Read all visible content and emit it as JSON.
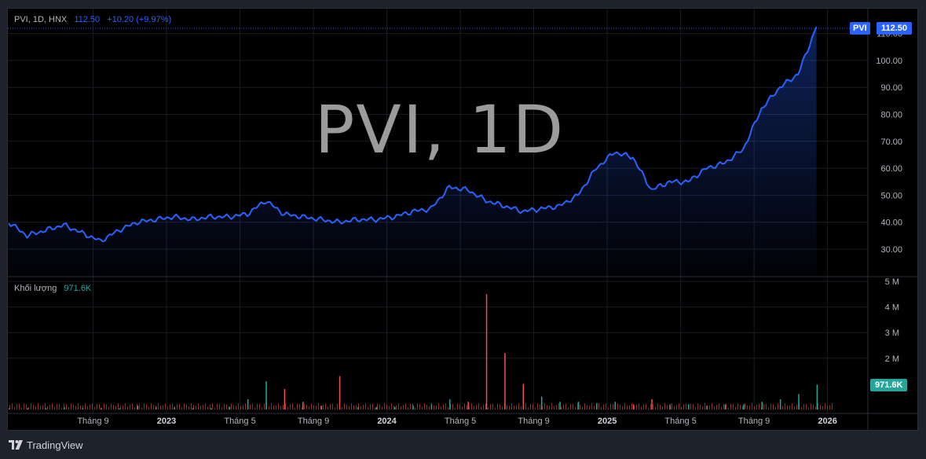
{
  "legend": {
    "symbol_info": "PVI, 1D, HNX",
    "last_price": "112.50",
    "change": "+10.20 (+9.97%)"
  },
  "volume_legend": {
    "label": "Khối lượng",
    "value": "971.6K"
  },
  "watermark": "PVI, 1D",
  "badges": {
    "symbol": "PVI",
    "price": "112.50",
    "volume": "971.6K"
  },
  "footer": {
    "brand": "TradingView"
  },
  "colors": {
    "line": "#2962ff",
    "volume_up": "#26a69a",
    "volume_down": "#ef5350",
    "background": "#000000",
    "axis_text": "#b2b5be"
  },
  "chart_data": [
    {
      "type": "area",
      "title": "PVI, 1D",
      "ylim": [
        25,
        115
      ],
      "y_ticks": [
        "30.00",
        "40.00",
        "50.00",
        "60.00",
        "70.00",
        "80.00",
        "90.00",
        "100.00",
        "110.00"
      ],
      "x_ticks": [
        "Tháng 9",
        "2023",
        "Tháng 5",
        "Tháng 9",
        "2024",
        "Tháng 5",
        "Tháng 9",
        "2025",
        "Tháng 5",
        "Tháng 9",
        "2026"
      ],
      "x_range": [
        "2022-05",
        "2026-02"
      ],
      "grid": true,
      "series": [
        {
          "x": [
            "2022-05",
            "2022-06",
            "2022-07",
            "2022-08",
            "2022-09",
            "2022-10",
            "2022-11",
            "2022-12",
            "2023-01",
            "2023-02",
            "2023-03",
            "2023-04",
            "2023-05",
            "2023-06",
            "2023-07",
            "2023-08",
            "2023-09",
            "2023-10",
            "2023-11",
            "2023-12",
            "2024-01",
            "2024-02",
            "2024-03",
            "2024-04",
            "2024-05",
            "2024-06",
            "2024-07",
            "2024-08",
            "2024-09",
            "2024-10",
            "2024-11",
            "2024-12",
            "2025-01",
            "2025-02",
            "2025-03",
            "2025-04",
            "2025-05",
            "2025-06",
            "2025-07",
            "2025-08",
            "2025-09",
            "2025-10",
            "2025-11",
            "2025-12",
            "2026-01"
          ],
          "values": [
            40,
            35,
            37,
            39,
            36,
            33,
            37,
            40,
            41,
            42,
            41,
            42,
            42,
            43,
            48,
            43,
            42,
            41,
            40,
            41,
            41,
            42,
            44,
            45,
            53,
            52,
            48,
            46,
            44,
            45,
            46,
            50,
            60,
            66,
            64,
            52,
            55,
            55,
            60,
            62,
            67,
            82,
            90,
            95,
            112.5
          ]
        }
      ]
    },
    {
      "type": "bar",
      "title": "Khối lượng",
      "ylim": [
        0,
        5000000
      ],
      "y_ticks": [
        "2 M",
        "3 M",
        "4 M",
        "5 M"
      ],
      "series": [
        {
          "name": "Khối lượng",
          "values": [
            0.05,
            0.05,
            0.05,
            0.08,
            0.05,
            0.05,
            0.05,
            0.15,
            0.1,
            0.1,
            0.05,
            0.05,
            0.1,
            0.4,
            1.1,
            0.8,
            0.3,
            0.15,
            1.3,
            0.1,
            0.1,
            0.1,
            0.15,
            0.2,
            0.4,
            0.3,
            4.5,
            2.2,
            1.0,
            0.5,
            0.3,
            0.3,
            0.25,
            0.3,
            0.2,
            0.4,
            0.2,
            0.2,
            0.15,
            0.2,
            0.2,
            0.3,
            0.4,
            0.6,
            0.97
          ]
        }
      ]
    }
  ]
}
